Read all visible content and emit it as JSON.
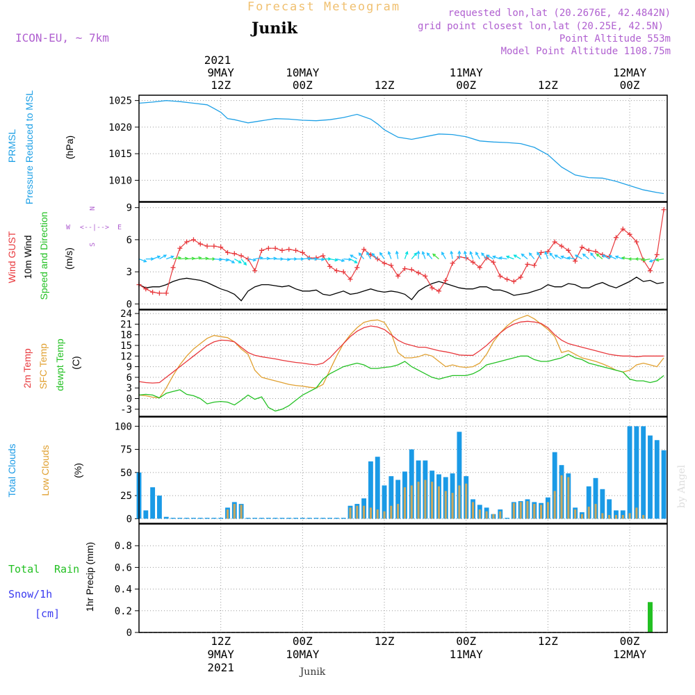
{
  "header": {
    "title": "Forecast Meteogram",
    "location": "Junik",
    "model": "ICON-EU, ~ 7km",
    "requested": "requested lon,lat (20.2676E, 42.4842N)",
    "grid": "grid point closest lon,lat (20.25E, 42.5N)",
    "point_alt": "Point Altitude 553m",
    "model_alt": "Model Point Altitude 1108.75m",
    "footer_location": "Junik",
    "watermark": "by Angel"
  },
  "colors": {
    "pressure": "#1ea0e6",
    "gust": "#e8383c",
    "wind": "#000000",
    "temp2m": "#e8383c",
    "sfc": "#e0a030",
    "dewpt": "#22c022",
    "total_clouds": "#1a9ae6",
    "low_clouds": "#c8a860",
    "rain": "#22c022",
    "snow": "#3a3af0",
    "purple": "#b060d0",
    "orange_title": "#f0c070"
  },
  "time_axis": {
    "top_year": "2021",
    "top_labels": [
      {
        "h": 12,
        "l1": "9MAY",
        "l2": "12Z"
      },
      {
        "h": 24,
        "l1": "10MAY",
        "l2": "00Z"
      },
      {
        "h": 36,
        "l1": "",
        "l2": "12Z"
      },
      {
        "h": 48,
        "l1": "11MAY",
        "l2": "00Z"
      },
      {
        "h": 60,
        "l1": "",
        "l2": "12Z"
      },
      {
        "h": 72,
        "l1": "12MAY",
        "l2": "00Z"
      }
    ],
    "bottom_labels": [
      {
        "h": 12,
        "l1": "12Z",
        "l2": "9MAY",
        "l3": "2021"
      },
      {
        "h": 24,
        "l1": "00Z",
        "l2": "10MAY",
        "l3": ""
      },
      {
        "h": 36,
        "l1": "12Z",
        "l2": "",
        "l3": ""
      },
      {
        "h": 48,
        "l1": "00Z",
        "l2": "11MAY",
        "l3": ""
      },
      {
        "h": 60,
        "l1": "12Z",
        "l2": "",
        "l3": ""
      },
      {
        "h": 72,
        "l1": "00Z",
        "l2": "12MAY",
        "l3": ""
      }
    ]
  },
  "chart_data": [
    {
      "type": "line",
      "panel": "pressure",
      "label_lines": [
        "PRMSL",
        "Pressure Reduced to MSL"
      ],
      "unit": "(hPa)",
      "ylim": [
        1006,
        1026
      ],
      "yticks": [
        1010,
        1015,
        1020,
        1025
      ],
      "x_hours": [
        0,
        2,
        4,
        6,
        8,
        10,
        11,
        12,
        13,
        14,
        15,
        16,
        18,
        20,
        22,
        24,
        26,
        28,
        30,
        32,
        34,
        35,
        36,
        37,
        38,
        40,
        42,
        44,
        46,
        48,
        50,
        52,
        54,
        56,
        58,
        60,
        62,
        64,
        66,
        68,
        70,
        72,
        74,
        76,
        77
      ],
      "values": [
        1024.5,
        1024.7,
        1025.0,
        1024.8,
        1024.5,
        1024.2,
        1023.5,
        1022.8,
        1021.6,
        1021.4,
        1021.1,
        1020.8,
        1021.2,
        1021.6,
        1021.5,
        1021.3,
        1021.2,
        1021.4,
        1021.8,
        1022.4,
        1021.5,
        1020.6,
        1019.5,
        1018.8,
        1018.1,
        1017.7,
        1018.2,
        1018.7,
        1018.6,
        1018.2,
        1017.4,
        1017.2,
        1017.1,
        1016.9,
        1016.2,
        1014.8,
        1012.5,
        1011.0,
        1010.5,
        1010.4,
        1009.8,
        1009.0,
        1008.2,
        1007.7,
        1007.5
      ]
    },
    {
      "type": "line",
      "panel": "wind",
      "label_lines": [
        "Wind GUST",
        "10m Wind",
        "Speed and Direction"
      ],
      "unit": "(m/s)",
      "compass": {
        "n": "N",
        "s": "S",
        "w": "W",
        "e": "E"
      },
      "ylim": [
        -0.5,
        9.5
      ],
      "yticks": [
        0,
        3,
        6,
        9
      ],
      "x_hours": [
        0,
        1,
        2,
        3,
        4,
        5,
        6,
        7,
        8,
        9,
        10,
        11,
        12,
        13,
        14,
        15,
        16,
        17,
        18,
        19,
        20,
        21,
        22,
        23,
        24,
        25,
        26,
        27,
        28,
        29,
        30,
        31,
        32,
        33,
        34,
        35,
        36,
        37,
        38,
        39,
        40,
        41,
        42,
        43,
        44,
        45,
        46,
        47,
        48,
        49,
        50,
        51,
        52,
        53,
        54,
        55,
        56,
        57,
        58,
        59,
        60,
        61,
        62,
        63,
        64,
        65,
        66,
        67,
        68,
        69,
        70,
        71,
        72,
        73,
        74,
        75,
        76,
        77
      ],
      "gust": [
        1.8,
        1.4,
        1.1,
        1.0,
        1.0,
        3.4,
        5.2,
        5.8,
        6.0,
        5.6,
        5.4,
        5.4,
        5.3,
        4.8,
        4.7,
        4.5,
        4.2,
        3.1,
        5.0,
        5.2,
        5.2,
        5.0,
        5.1,
        5.0,
        4.8,
        4.3,
        4.3,
        4.5,
        3.5,
        3.1,
        3.0,
        2.3,
        3.4,
        5.1,
        4.6,
        4.2,
        3.8,
        3.6,
        2.6,
        3.3,
        3.2,
        2.9,
        2.6,
        1.5,
        1.2,
        2.2,
        3.8,
        4.4,
        4.3,
        3.9,
        3.4,
        4.3,
        3.9,
        2.6,
        2.3,
        2.1,
        2.5,
        3.7,
        3.6,
        4.8,
        4.9,
        5.8,
        5.4,
        5.0,
        4.0,
        5.3,
        5.0,
        4.9,
        4.6,
        4.4,
        6.2,
        7.0,
        6.5,
        5.8,
        4.1,
        3.1,
        4.6,
        8.8
      ],
      "speed": [
        1.8,
        1.5,
        1.6,
        1.6,
        1.8,
        2.1,
        2.3,
        2.4,
        2.3,
        2.2,
        2.0,
        1.7,
        1.4,
        1.2,
        0.9,
        0.3,
        1.2,
        1.6,
        1.8,
        1.8,
        1.7,
        1.6,
        1.7,
        1.4,
        1.2,
        1.2,
        1.3,
        0.9,
        0.8,
        1.0,
        1.2,
        0.9,
        1.0,
        1.2,
        1.4,
        1.2,
        1.1,
        1.2,
        1.1,
        0.9,
        0.4,
        1.2,
        1.6,
        1.9,
        2.1,
        1.9,
        1.7,
        1.5,
        1.4,
        1.4,
        1.6,
        1.6,
        1.3,
        1.3,
        1.1,
        0.8,
        0.9,
        1.0,
        1.2,
        1.4,
        1.8,
        1.6,
        1.6,
        1.9,
        1.8,
        1.5,
        1.5,
        1.8,
        2.0,
        1.7,
        1.5,
        1.8,
        2.1,
        2.5,
        2.1,
        2.2,
        1.9,
        2.0
      ],
      "dir_deg": [
        290,
        270,
        250,
        240,
        250,
        260,
        265,
        265,
        260,
        265,
        270,
        275,
        280,
        300,
        300,
        320,
        280,
        260,
        265,
        265,
        270,
        275,
        270,
        270,
        265,
        270,
        275,
        270,
        280,
        285,
        275,
        300,
        120,
        140,
        150,
        135,
        145,
        160,
        170,
        200,
        220,
        180,
        160,
        140,
        130,
        150,
        170,
        180,
        170,
        160,
        150,
        140,
        120,
        110,
        100,
        110,
        120,
        130,
        140,
        150,
        160,
        140,
        120,
        110,
        100,
        120,
        130,
        140,
        130,
        120,
        115,
        110,
        100,
        90,
        90,
        80,
        70,
        80
      ]
    },
    {
      "type": "line",
      "panel": "temperature",
      "label_lines": [
        "2m Temp",
        "SFC Temp",
        "dewpt Temp"
      ],
      "unit": "(C)",
      "ylim": [
        -5,
        25
      ],
      "yticks": [
        -3,
        0,
        3,
        6,
        9,
        12,
        15,
        18,
        21,
        24
      ],
      "x_hours": [
        0,
        1,
        2,
        3,
        4,
        5,
        6,
        7,
        8,
        9,
        10,
        11,
        12,
        13,
        14,
        15,
        16,
        17,
        18,
        19,
        20,
        21,
        22,
        23,
        24,
        25,
        26,
        27,
        28,
        29,
        30,
        31,
        32,
        33,
        34,
        35,
        36,
        37,
        38,
        39,
        40,
        41,
        42,
        43,
        44,
        45,
        46,
        47,
        48,
        49,
        50,
        51,
        52,
        53,
        54,
        55,
        56,
        57,
        58,
        59,
        60,
        61,
        62,
        63,
        64,
        65,
        66,
        67,
        68,
        69,
        70,
        71,
        72,
        73,
        74,
        75,
        76,
        77
      ],
      "temp2m": [
        4.8,
        4.5,
        4.4,
        4.5,
        6.0,
        7.5,
        9.0,
        10.5,
        12.0,
        13.5,
        15.0,
        16.0,
        16.5,
        16.4,
        16.0,
        14.5,
        13.0,
        12.2,
        11.8,
        11.5,
        11.2,
        10.8,
        10.5,
        10.2,
        10.0,
        9.7,
        9.5,
        10.0,
        11.5,
        13.5,
        15.5,
        17.5,
        19.0,
        20.0,
        20.5,
        20.2,
        19.5,
        18.0,
        16.5,
        15.5,
        15.0,
        14.5,
        14.5,
        14.0,
        13.5,
        13.2,
        12.8,
        12.3,
        12.2,
        12.2,
        13.5,
        15.0,
        16.8,
        18.5,
        20.0,
        21.0,
        21.6,
        21.8,
        21.6,
        21.2,
        20.0,
        18.0,
        16.5,
        15.5,
        15.0,
        14.5,
        14.0,
        13.5,
        13.0,
        12.5,
        12.2,
        12.0,
        12.0,
        11.8,
        12.0,
        12.0,
        12.0,
        12.0
      ],
      "sfc": [
        1.0,
        0.8,
        0.4,
        0.2,
        3.0,
        6.5,
        9.5,
        12.0,
        14.0,
        15.5,
        17.0,
        17.8,
        17.5,
        17.2,
        16.0,
        14.0,
        12.5,
        8.0,
        6.0,
        5.5,
        5.0,
        4.5,
        4.0,
        3.7,
        3.5,
        3.2,
        3.0,
        4.0,
        8.0,
        12.0,
        15.5,
        18.0,
        20.0,
        21.5,
        22.0,
        22.2,
        21.5,
        18.5,
        13.0,
        11.5,
        11.5,
        11.8,
        12.5,
        12.0,
        10.5,
        9.0,
        9.5,
        9.0,
        8.8,
        9.0,
        10.0,
        12.5,
        16.0,
        18.5,
        20.5,
        22.0,
        22.8,
        23.5,
        22.5,
        21.0,
        19.5,
        17.5,
        13.0,
        13.5,
        12.5,
        11.5,
        11.0,
        10.5,
        9.8,
        9.0,
        8.0,
        7.5,
        8.0,
        9.5,
        10.0,
        9.5,
        9.0,
        11.5
      ],
      "dewpt": [
        1.0,
        1.2,
        1.0,
        0.2,
        1.5,
        2.0,
        2.5,
        1.2,
        0.8,
        0.0,
        -1.5,
        -1.0,
        -0.8,
        -1.0,
        -1.8,
        -0.5,
        1.0,
        -0.2,
        0.5,
        -2.5,
        -3.5,
        -3.0,
        -2.0,
        -0.5,
        1.0,
        2.0,
        3.0,
        5.5,
        7.0,
        8.0,
        9.0,
        9.5,
        10.0,
        9.5,
        8.5,
        8.5,
        8.8,
        9.0,
        9.5,
        10.5,
        9.0,
        8.0,
        7.0,
        6.0,
        5.5,
        6.0,
        6.5,
        6.5,
        6.5,
        7.0,
        8.0,
        9.5,
        10.0,
        10.5,
        11.0,
        11.5,
        12.0,
        12.0,
        11.0,
        10.5,
        10.5,
        11.0,
        11.5,
        12.5,
        11.5,
        11.0,
        10.0,
        9.5,
        9.0,
        8.5,
        8.0,
        7.5,
        5.5,
        5.0,
        5.0,
        4.5,
        5.0,
        6.5
      ]
    },
    {
      "type": "bar",
      "panel": "clouds",
      "label_lines": [
        "Total Clouds",
        "Low Clouds"
      ],
      "unit": "(%)",
      "ylim": [
        -5,
        110
      ],
      "yticks": [
        0,
        25,
        50,
        75,
        100
      ],
      "x_hours": [
        0,
        1,
        2,
        3,
        4,
        5,
        6,
        7,
        8,
        9,
        10,
        11,
        12,
        13,
        14,
        15,
        16,
        17,
        18,
        19,
        20,
        21,
        22,
        23,
        24,
        25,
        26,
        27,
        28,
        29,
        30,
        31,
        32,
        33,
        34,
        35,
        36,
        37,
        38,
        39,
        40,
        41,
        42,
        43,
        44,
        45,
        46,
        47,
        48,
        49,
        50,
        51,
        52,
        53,
        54,
        55,
        56,
        57,
        58,
        59,
        60,
        61,
        62,
        63,
        64,
        65,
        66,
        67,
        68,
        69,
        70,
        71,
        72,
        73,
        74,
        75,
        76,
        77
      ],
      "total": [
        50,
        9,
        34,
        25,
        2,
        1,
        1,
        1,
        1,
        1,
        1,
        1,
        1,
        12,
        18,
        16,
        1,
        1,
        1,
        1,
        1,
        1,
        1,
        1,
        1,
        1,
        1,
        1,
        1,
        1,
        1,
        14,
        16,
        22,
        62,
        67,
        36,
        46,
        42,
        51,
        75,
        63,
        63,
        52,
        48,
        45,
        49,
        94,
        46,
        21,
        15,
        12,
        5,
        10,
        1,
        18,
        19,
        21,
        18,
        17,
        23,
        72,
        58,
        49,
        12,
        7,
        35,
        44,
        32,
        21,
        9,
        9,
        100,
        100,
        100,
        90,
        85,
        74
      ],
      "low": [
        0,
        0,
        0,
        0,
        0,
        0,
        0,
        0,
        0,
        0,
        0,
        0,
        0,
        10,
        16,
        15,
        0,
        0,
        0,
        0,
        0,
        0,
        0,
        0,
        0,
        0,
        0,
        0,
        0,
        0,
        0,
        12,
        14,
        14,
        12,
        10,
        8,
        14,
        16,
        34,
        36,
        40,
        42,
        40,
        35,
        30,
        28,
        36,
        38,
        18,
        10,
        8,
        5,
        8,
        0,
        17,
        18,
        19,
        16,
        15,
        18,
        30,
        47,
        45,
        10,
        5,
        13,
        16,
        6,
        4,
        4,
        4,
        6,
        12,
        4,
        0,
        0,
        0
      ]
    },
    {
      "type": "bar",
      "panel": "precip",
      "legend_total": "Total",
      "legend_rain": "Rain",
      "legend_snow": "Snow/1h",
      "legend_snow_unit": "[cm]",
      "unit": "1hr Precip (mm)",
      "ylim": [
        0,
        1.0
      ],
      "yticks": [
        0,
        0.2,
        0.4,
        0.6,
        0.8
      ],
      "ytick_labels": [
        "0",
        "0.2",
        "0.4",
        "0.6",
        "0.8"
      ],
      "x_hours": [
        75
      ],
      "values": [
        0.28
      ]
    }
  ]
}
